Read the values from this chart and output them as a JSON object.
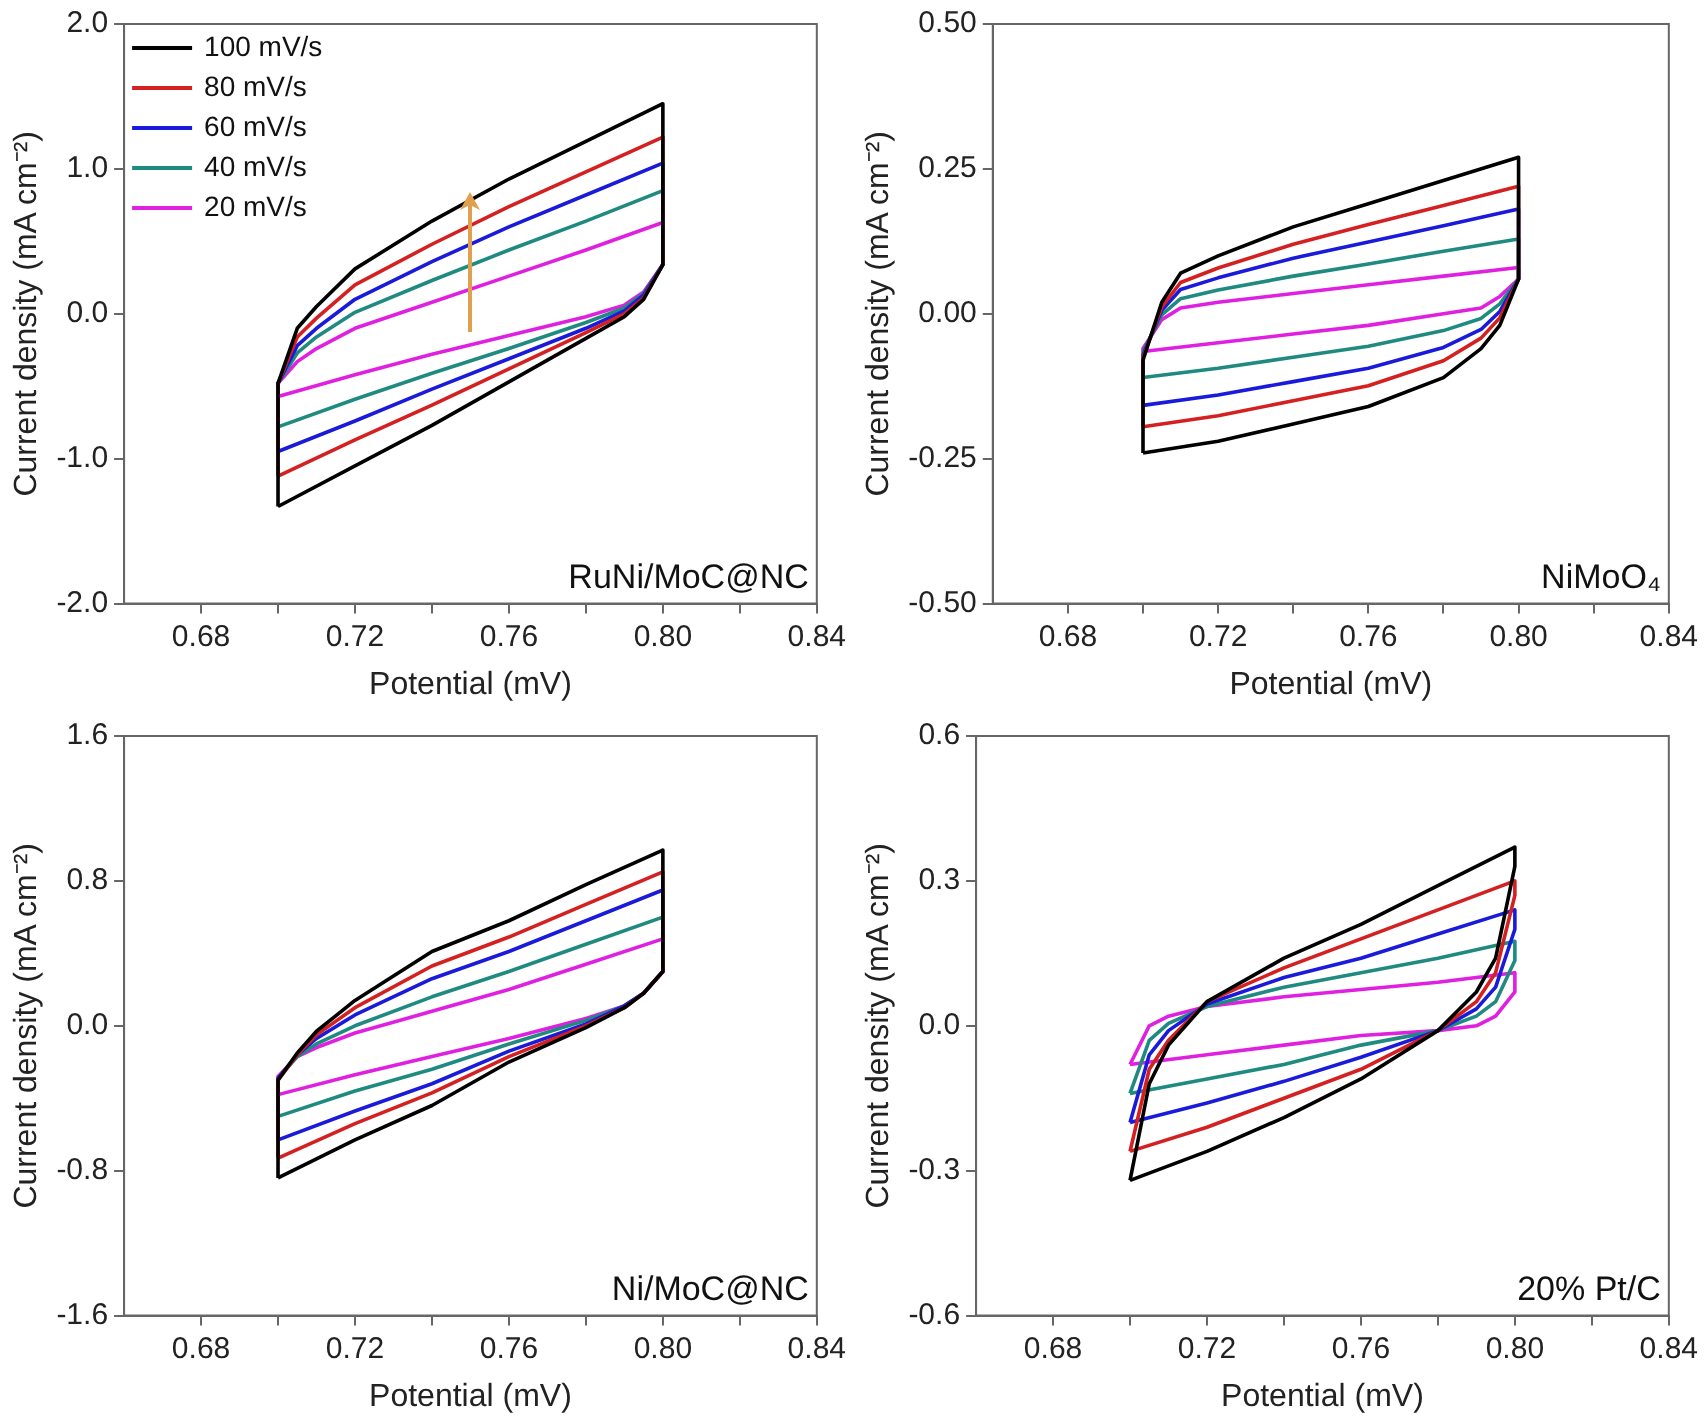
{
  "chart_data": [
    {
      "type": "line",
      "xlabel": "Potential (mV)",
      "ylabel": "Current density (mA cm⁻²)",
      "annotations": [
        "RuNi/MoC@NC"
      ],
      "legend": "top left",
      "xlim": [
        0.66,
        0.84
      ],
      "xticks": [
        {
          "value": 0.68,
          "label": "0.68"
        },
        {
          "value": 0.7,
          "label": null
        },
        {
          "value": 0.72,
          "label": "0.72"
        },
        {
          "value": 0.74,
          "label": null
        },
        {
          "value": 0.76,
          "label": "0.76"
        },
        {
          "value": 0.78,
          "label": null
        },
        {
          "value": 0.8,
          "label": "0.80"
        },
        {
          "value": 0.82,
          "label": null
        },
        {
          "value": 0.84,
          "label": "0.84"
        }
      ],
      "ylim": [
        -2,
        2
      ],
      "yticks": [
        {
          "value": -2,
          "label": "-2.0"
        },
        {
          "value": -1,
          "label": "-1.0"
        },
        {
          "value": 0,
          "label": "0.0"
        },
        {
          "value": 1,
          "label": "1.0"
        },
        {
          "value": 2,
          "label": "2.0"
        }
      ],
      "series": [
        {
          "name": "100 mV/s",
          "color": "#000000",
          "x": [
            0.7,
            0.7,
            0.705,
            0.71,
            0.72,
            0.74,
            0.76,
            0.78,
            0.8
          ],
          "values": [
            -1.33,
            -0.48,
            -0.1,
            0.05,
            0.31,
            0.64,
            0.93,
            1.19,
            1.45
          ]
        },
        {
          "color": "#000000",
          "x": [
            0.8,
            0.8,
            0.795,
            0.79,
            0.78,
            0.76,
            0.74,
            0.72,
            0.7
          ],
          "values": [
            1.45,
            0.34,
            0.1,
            -0.02,
            -0.17,
            -0.47,
            -0.77,
            -1.05,
            -1.33
          ]
        },
        {
          "name": "80 mV/s",
          "color": "#d42020",
          "x": [
            0.7,
            0.7,
            0.705,
            0.71,
            0.72,
            0.74,
            0.76,
            0.78,
            0.8
          ],
          "values": [
            -1.12,
            -0.48,
            -0.16,
            -0.03,
            0.2,
            0.48,
            0.74,
            0.98,
            1.22
          ]
        },
        {
          "color": "#d42020",
          "x": [
            0.8,
            0.8,
            0.795,
            0.79,
            0.78,
            0.76,
            0.74,
            0.72,
            0.7
          ],
          "values": [
            1.22,
            0.34,
            0.11,
            0.0,
            -0.13,
            -0.38,
            -0.63,
            -0.87,
            -1.12
          ]
        },
        {
          "name": "60 mV/s",
          "color": "#1a1adb",
          "x": [
            0.7,
            0.7,
            0.705,
            0.71,
            0.72,
            0.74,
            0.76,
            0.78,
            0.8
          ],
          "values": [
            -0.95,
            -0.48,
            -0.22,
            -0.1,
            0.1,
            0.36,
            0.6,
            0.82,
            1.04
          ]
        },
        {
          "color": "#1a1adb",
          "x": [
            0.8,
            0.8,
            0.795,
            0.79,
            0.78,
            0.76,
            0.74,
            0.72,
            0.7
          ],
          "values": [
            1.04,
            0.34,
            0.13,
            0.02,
            -0.1,
            -0.31,
            -0.52,
            -0.74,
            -0.95
          ]
        },
        {
          "name": "40 mV/s",
          "color": "#1f8a80",
          "x": [
            0.7,
            0.7,
            0.705,
            0.71,
            0.72,
            0.74,
            0.76,
            0.78,
            0.8
          ],
          "values": [
            -0.78,
            -0.48,
            -0.27,
            -0.16,
            0.01,
            0.23,
            0.44,
            0.64,
            0.85
          ]
        },
        {
          "color": "#1f8a80",
          "x": [
            0.8,
            0.8,
            0.795,
            0.79,
            0.78,
            0.76,
            0.74,
            0.72,
            0.7
          ],
          "values": [
            0.85,
            0.34,
            0.14,
            0.04,
            -0.06,
            -0.24,
            -0.41,
            -0.59,
            -0.78
          ]
        },
        {
          "name": "20 mV/s",
          "color": "#e020e0",
          "x": [
            0.7,
            0.7,
            0.705,
            0.71,
            0.72,
            0.74,
            0.76,
            0.78,
            0.8
          ],
          "values": [
            -0.57,
            -0.48,
            -0.33,
            -0.24,
            -0.1,
            0.08,
            0.26,
            0.44,
            0.63
          ]
        },
        {
          "color": "#e020e0",
          "x": [
            0.8,
            0.8,
            0.795,
            0.79,
            0.78,
            0.76,
            0.74,
            0.72,
            0.7
          ],
          "values": [
            0.63,
            0.34,
            0.15,
            0.06,
            -0.02,
            -0.15,
            -0.28,
            -0.42,
            -0.57
          ]
        }
      ]
    },
    {
      "type": "line",
      "xlabel": "Potential (mV)",
      "ylabel": "Current density (mA cm⁻²)",
      "annotations": [
        "NiMoO₄"
      ],
      "xlim": [
        0.66,
        0.84
      ],
      "xticks": [
        {
          "value": 0.68,
          "label": "0.68"
        },
        {
          "value": 0.7,
          "label": null
        },
        {
          "value": 0.72,
          "label": "0.72"
        },
        {
          "value": 0.74,
          "label": null
        },
        {
          "value": 0.76,
          "label": "0.76"
        },
        {
          "value": 0.78,
          "label": null
        },
        {
          "value": 0.8,
          "label": "0.80"
        },
        {
          "value": 0.82,
          "label": null
        },
        {
          "value": 0.84,
          "label": "0.84"
        }
      ],
      "ylim": [
        -0.5,
        0.5
      ],
      "yticks": [
        {
          "value": -0.5,
          "label": "-0.50"
        },
        -0.25,
        {
          "value": 0,
          "label": "0.00"
        },
        0.25,
        {
          "value": 0.5,
          "label": "0.50"
        }
      ],
      "series": [
        {
          "color": "#000000",
          "x": [
            0.7,
            0.7,
            0.705,
            0.71,
            0.72,
            0.74,
            0.76,
            0.78,
            0.8
          ],
          "values": [
            -0.24,
            -0.08,
            0.02,
            0.07,
            0.1,
            0.15,
            0.19,
            0.23,
            0.27
          ]
        },
        {
          "color": "#000000",
          "x": [
            0.8,
            0.8,
            0.795,
            0.79,
            0.78,
            0.76,
            0.74,
            0.72,
            0.7
          ],
          "values": [
            0.27,
            0.06,
            -0.02,
            -0.06,
            -0.11,
            -0.16,
            -0.19,
            -0.22,
            -0.24
          ]
        },
        {
          "color": "#d42020",
          "x": [
            0.7,
            0.7,
            0.705,
            0.71,
            0.72,
            0.74,
            0.76,
            0.78,
            0.8
          ],
          "values": [
            -0.195,
            -0.075,
            0.012,
            0.054,
            0.079,
            0.12,
            0.154,
            0.187,
            0.22
          ]
        },
        {
          "color": "#d42020",
          "x": [
            0.8,
            0.8,
            0.795,
            0.79,
            0.78,
            0.76,
            0.74,
            0.72,
            0.7
          ],
          "values": [
            0.22,
            0.06,
            -0.007,
            -0.042,
            -0.081,
            -0.124,
            -0.15,
            -0.176,
            -0.195
          ]
        },
        {
          "color": "#1a1adb",
          "x": [
            0.7,
            0.7,
            0.705,
            0.71,
            0.72,
            0.74,
            0.76,
            0.78,
            0.8
          ],
          "values": [
            -0.158,
            -0.071,
            0.006,
            0.042,
            0.062,
            0.096,
            0.124,
            0.152,
            0.181
          ]
        },
        {
          "color": "#1a1adb",
          "x": [
            0.8,
            0.8,
            0.795,
            0.79,
            0.78,
            0.76,
            0.74,
            0.72,
            0.7
          ],
          "values": [
            0.181,
            0.06,
            0.004,
            -0.027,
            -0.058,
            -0.094,
            -0.117,
            -0.14,
            -0.158
          ]
        },
        {
          "color": "#1f8a80",
          "x": [
            0.7,
            0.7,
            0.705,
            0.71,
            0.72,
            0.74,
            0.76,
            0.78,
            0.8
          ],
          "values": [
            -0.11,
            -0.065,
            -0.002,
            0.026,
            0.041,
            0.065,
            0.086,
            0.108,
            0.129
          ]
        },
        {
          "color": "#1f8a80",
          "x": [
            0.8,
            0.8,
            0.795,
            0.79,
            0.78,
            0.76,
            0.74,
            0.72,
            0.7
          ],
          "values": [
            0.129,
            0.06,
            0.017,
            -0.008,
            -0.029,
            -0.056,
            -0.075,
            -0.094,
            -0.11
          ]
        },
        {
          "color": "#e020e0",
          "x": [
            0.7,
            0.7,
            0.705,
            0.71,
            0.72,
            0.74,
            0.76,
            0.78,
            0.8
          ],
          "values": [
            -0.065,
            -0.06,
            -0.01,
            0.01,
            0.02,
            0.035,
            0.05,
            0.065,
            0.08
          ]
        },
        {
          "color": "#e020e0",
          "x": [
            0.8,
            0.8,
            0.795,
            0.79,
            0.78,
            0.76,
            0.74,
            0.72,
            0.7
          ],
          "values": [
            0.08,
            0.06,
            0.03,
            0.01,
            0.0,
            -0.02,
            -0.035,
            -0.05,
            -0.065
          ]
        }
      ]
    },
    {
      "type": "line",
      "xlabel": "Potential (mV)",
      "ylabel": "Current density (mA cm⁻²)",
      "annotations": [
        "Ni/MoC@NC"
      ],
      "xlim": [
        0.66,
        0.84
      ],
      "xticks": [
        {
          "value": 0.68,
          "label": "0.68"
        },
        {
          "value": 0.7,
          "label": null
        },
        {
          "value": 0.72,
          "label": "0.72"
        },
        {
          "value": 0.74,
          "label": null
        },
        {
          "value": 0.76,
          "label": "0.76"
        },
        {
          "value": 0.78,
          "label": null
        },
        {
          "value": 0.8,
          "label": "0.80"
        },
        {
          "value": 0.82,
          "label": null
        },
        {
          "value": 0.84,
          "label": "0.84"
        }
      ],
      "ylim": [
        -1.6,
        1.6
      ],
      "yticks": [
        -1.6,
        -0.8,
        {
          "value": 0,
          "label": "0.0"
        },
        0.8,
        1.6
      ],
      "series": [
        {
          "color": "#000000",
          "x": [
            0.7,
            0.7,
            0.705,
            0.71,
            0.72,
            0.74,
            0.76,
            0.78,
            0.8
          ],
          "values": [
            -0.84,
            -0.3,
            -0.15,
            -0.03,
            0.14,
            0.41,
            0.58,
            0.78,
            0.97
          ]
        },
        {
          "color": "#000000",
          "x": [
            0.8,
            0.8,
            0.795,
            0.79,
            0.78,
            0.76,
            0.74,
            0.72,
            0.7
          ],
          "values": [
            0.97,
            0.3,
            0.18,
            0.1,
            -0.01,
            -0.2,
            -0.44,
            -0.63,
            -0.84
          ]
        },
        {
          "color": "#d42020",
          "x": [
            0.7,
            0.7,
            0.705,
            0.71,
            0.72,
            0.74,
            0.76,
            0.78,
            0.8
          ],
          "values": [
            -0.73,
            -0.3,
            -0.16,
            -0.05,
            0.1,
            0.33,
            0.49,
            0.67,
            0.85
          ]
        },
        {
          "color": "#d42020",
          "x": [
            0.8,
            0.8,
            0.795,
            0.79,
            0.78,
            0.76,
            0.74,
            0.72,
            0.7
          ],
          "values": [
            0.85,
            0.3,
            0.18,
            0.1,
            0.0,
            -0.17,
            -0.37,
            -0.54,
            -0.73
          ]
        },
        {
          "color": "#1a1adb",
          "x": [
            0.7,
            0.7,
            0.705,
            0.71,
            0.72,
            0.74,
            0.76,
            0.78,
            0.8
          ],
          "values": [
            -0.63,
            -0.29,
            -0.16,
            -0.07,
            0.06,
            0.26,
            0.41,
            0.58,
            0.75
          ]
        },
        {
          "color": "#1a1adb",
          "x": [
            0.8,
            0.8,
            0.795,
            0.79,
            0.78,
            0.76,
            0.74,
            0.72,
            0.7
          ],
          "values": [
            0.75,
            0.3,
            0.18,
            0.11,
            0.01,
            -0.14,
            -0.32,
            -0.47,
            -0.63
          ]
        },
        {
          "color": "#1f8a80",
          "x": [
            0.7,
            0.7,
            0.705,
            0.71,
            0.72,
            0.74,
            0.76,
            0.78,
            0.8
          ],
          "values": [
            -0.5,
            -0.29,
            -0.17,
            -0.1,
            0.0,
            0.16,
            0.3,
            0.45,
            0.6
          ]
        },
        {
          "color": "#1f8a80",
          "x": [
            0.8,
            0.8,
            0.795,
            0.79,
            0.78,
            0.76,
            0.74,
            0.72,
            0.7
          ],
          "values": [
            0.6,
            0.3,
            0.18,
            0.11,
            0.03,
            -0.1,
            -0.24,
            -0.36,
            -0.5
          ]
        },
        {
          "color": "#e020e0",
          "x": [
            0.7,
            0.7,
            0.705,
            0.71,
            0.72,
            0.74,
            0.76,
            0.78,
            0.8
          ],
          "values": [
            -0.38,
            -0.28,
            -0.17,
            -0.12,
            -0.04,
            0.08,
            0.2,
            0.34,
            0.48
          ]
        },
        {
          "color": "#e020e0",
          "x": [
            0.8,
            0.8,
            0.795,
            0.79,
            0.78,
            0.76,
            0.74,
            0.72,
            0.7
          ],
          "values": [
            0.48,
            0.3,
            0.18,
            0.11,
            0.04,
            -0.07,
            -0.17,
            -0.27,
            -0.38
          ]
        }
      ]
    },
    {
      "type": "line",
      "xlabel": "Potential (mV)",
      "ylabel": "Current density (mA cm⁻²)",
      "annotations": [
        "20% Pt/C"
      ],
      "xlim": [
        0.66,
        0.84
      ],
      "xticks": [
        {
          "value": 0.68,
          "label": "0.68"
        },
        {
          "value": 0.7,
          "label": null
        },
        {
          "value": 0.72,
          "label": "0.72"
        },
        {
          "value": 0.74,
          "label": null
        },
        {
          "value": 0.76,
          "label": "0.76"
        },
        {
          "value": 0.78,
          "label": null
        },
        {
          "value": 0.8,
          "label": "0.80"
        },
        {
          "value": 0.82,
          "label": null
        },
        {
          "value": 0.84,
          "label": "0.84"
        }
      ],
      "ylim": [
        -0.6,
        0.6
      ],
      "yticks": [
        -0.6,
        -0.3,
        {
          "value": 0,
          "label": "0.0"
        },
        0.3,
        0.6
      ],
      "series": [
        {
          "color": "#000000",
          "x": [
            0.7,
            0.705,
            0.71,
            0.72,
            0.74,
            0.76,
            0.78,
            0.8
          ],
          "values": [
            -0.32,
            -0.12,
            -0.04,
            0.05,
            0.14,
            0.21,
            0.29,
            0.37
          ]
        },
        {
          "color": "#000000",
          "x": [
            0.8,
            0.8,
            0.795,
            0.79,
            0.78,
            0.76,
            0.74,
            0.72,
            0.7
          ],
          "values": [
            0.37,
            0.33,
            0.14,
            0.07,
            -0.01,
            -0.11,
            -0.19,
            -0.26,
            -0.32
          ]
        },
        {
          "color": "#d42020",
          "x": [
            0.7,
            0.705,
            0.71,
            0.72,
            0.74,
            0.76,
            0.78,
            0.8
          ],
          "values": [
            -0.26,
            -0.09,
            -0.03,
            0.05,
            0.12,
            0.18,
            0.24,
            0.3
          ]
        },
        {
          "color": "#d42020",
          "x": [
            0.8,
            0.8,
            0.795,
            0.79,
            0.78,
            0.76,
            0.74,
            0.72,
            0.7
          ],
          "values": [
            0.3,
            0.27,
            0.11,
            0.05,
            -0.01,
            -0.09,
            -0.15,
            -0.21,
            -0.26
          ]
        },
        {
          "color": "#1a1adb",
          "x": [
            0.7,
            0.705,
            0.71,
            0.72,
            0.74,
            0.76,
            0.78,
            0.8
          ],
          "values": [
            -0.2,
            -0.06,
            -0.01,
            0.045,
            0.1,
            0.14,
            0.19,
            0.24
          ]
        },
        {
          "color": "#1a1adb",
          "x": [
            0.8,
            0.8,
            0.795,
            0.79,
            0.78,
            0.76,
            0.74,
            0.72,
            0.7
          ],
          "values": [
            0.24,
            0.2,
            0.08,
            0.035,
            -0.01,
            -0.065,
            -0.115,
            -0.16,
            -0.2
          ]
        },
        {
          "color": "#1f8a80",
          "x": [
            0.7,
            0.705,
            0.71,
            0.72,
            0.74,
            0.76,
            0.78,
            0.8
          ],
          "values": [
            -0.14,
            -0.03,
            0.005,
            0.04,
            0.08,
            0.11,
            0.14,
            0.175
          ]
        },
        {
          "color": "#1f8a80",
          "x": [
            0.8,
            0.8,
            0.795,
            0.79,
            0.78,
            0.76,
            0.74,
            0.72,
            0.7
          ],
          "values": [
            0.175,
            0.135,
            0.05,
            0.02,
            -0.01,
            -0.04,
            -0.08,
            -0.11,
            -0.14
          ]
        },
        {
          "color": "#e020e0",
          "x": [
            0.7,
            0.705,
            0.71,
            0.72,
            0.74,
            0.76,
            0.78,
            0.8
          ],
          "values": [
            -0.08,
            0.0,
            0.02,
            0.04,
            0.06,
            0.075,
            0.09,
            0.11
          ]
        },
        {
          "color": "#e020e0",
          "x": [
            0.8,
            0.8,
            0.795,
            0.79,
            0.78,
            0.76,
            0.74,
            0.72,
            0.7
          ],
          "values": [
            0.11,
            0.07,
            0.02,
            0.0,
            -0.01,
            -0.02,
            -0.04,
            -0.06,
            -0.08
          ]
        }
      ]
    }
  ]
}
